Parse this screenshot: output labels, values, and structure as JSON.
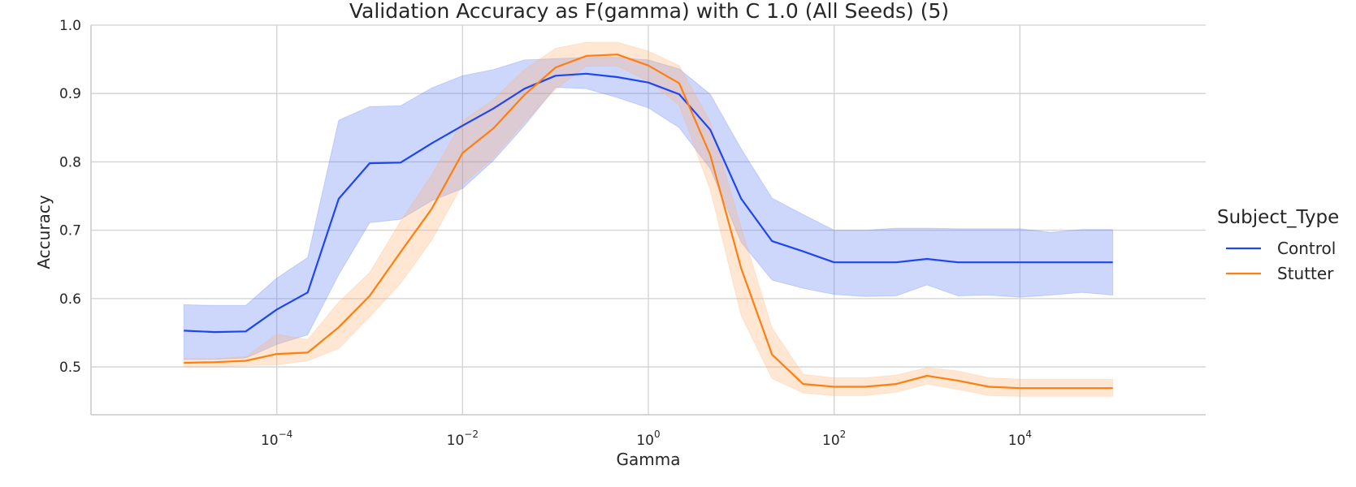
{
  "chart_data": {
    "type": "line",
    "title": "Validation Accuracy as F(gamma) with C 1.0 (All Seeds) (5)",
    "xlabel": "Gamma",
    "ylabel": "Accuracy",
    "x_scale": "log",
    "xlim": [
      1e-06,
      1000000.0
    ],
    "ylim": [
      0.43,
      1.0
    ],
    "grid": true,
    "x_ticks": [
      0.0001,
      0.01,
      1,
      100,
      10000
    ],
    "x_tick_labels": [
      {
        "base": "10",
        "exp": "−4"
      },
      {
        "base": "10",
        "exp": "−2"
      },
      {
        "base": "10",
        "exp": "0"
      },
      {
        "base": "10",
        "exp": "2"
      },
      {
        "base": "10",
        "exp": "4"
      }
    ],
    "y_ticks": [
      0.5,
      0.6,
      0.7,
      0.8,
      0.9,
      1.0
    ],
    "y_tick_labels": [
      "0.5",
      "0.6",
      "0.7",
      "0.8",
      "0.9",
      "1.0"
    ],
    "legend": {
      "title": "Subject_Type",
      "placement": "right",
      "entries": [
        "Control",
        "Stutter"
      ]
    },
    "x": [
      1e-05,
      2.15e-05,
      4.64e-05,
      0.0001,
      0.000215,
      0.000464,
      0.001,
      0.00215,
      0.00464,
      0.01,
      0.0215,
      0.0464,
      0.1,
      0.215,
      0.464,
      1.0,
      2.15,
      4.64,
      10.0,
      21.5,
      46.4,
      100.0,
      215.0,
      464.0,
      1000.0,
      2150.0,
      4640.0,
      10000.0,
      21500.0,
      46400.0,
      100000.0
    ],
    "series": [
      {
        "name": "Control",
        "color": "#1f45f0",
        "band_color": "#5b7cf5",
        "values": [
          0.553,
          0.551,
          0.552,
          0.584,
          0.609,
          0.746,
          0.798,
          0.799,
          0.827,
          0.853,
          0.878,
          0.907,
          0.926,
          0.929,
          0.924,
          0.916,
          0.899,
          0.847,
          0.746,
          0.684,
          0.669,
          0.653,
          0.653,
          0.653,
          0.658,
          0.653,
          0.653,
          0.653,
          0.653,
          0.653,
          0.653
        ],
        "lower": [
          0.511,
          0.511,
          0.513,
          0.533,
          0.547,
          0.635,
          0.711,
          0.716,
          0.743,
          0.761,
          0.802,
          0.853,
          0.909,
          0.907,
          0.894,
          0.879,
          0.85,
          0.79,
          0.682,
          0.627,
          0.615,
          0.606,
          0.603,
          0.604,
          0.62,
          0.604,
          0.605,
          0.602,
          0.605,
          0.609,
          0.605
        ],
        "upper": [
          0.591,
          0.59,
          0.59,
          0.63,
          0.66,
          0.861,
          0.881,
          0.882,
          0.908,
          0.926,
          0.935,
          0.949,
          0.951,
          0.953,
          0.953,
          0.949,
          0.936,
          0.899,
          0.819,
          0.747,
          0.723,
          0.7,
          0.7,
          0.703,
          0.703,
          0.702,
          0.702,
          0.702,
          0.697,
          0.701,
          0.701
        ]
      },
      {
        "name": "Stutter",
        "color": "#ff7f0e",
        "band_color": "#ffb070",
        "values": [
          0.506,
          0.507,
          0.509,
          0.519,
          0.521,
          0.558,
          0.604,
          0.668,
          0.731,
          0.813,
          0.849,
          0.898,
          0.938,
          0.955,
          0.957,
          0.941,
          0.915,
          0.81,
          0.644,
          0.518,
          0.475,
          0.471,
          0.471,
          0.475,
          0.487,
          0.48,
          0.471,
          0.469,
          0.469,
          0.469,
          0.469
        ],
        "lower": [
          0.5,
          0.5,
          0.502,
          0.503,
          0.509,
          0.527,
          0.573,
          0.622,
          0.685,
          0.767,
          0.806,
          0.858,
          0.906,
          0.94,
          0.94,
          0.918,
          0.883,
          0.759,
          0.575,
          0.483,
          0.462,
          0.458,
          0.458,
          0.463,
          0.475,
          0.467,
          0.458,
          0.457,
          0.457,
          0.457,
          0.457
        ],
        "upper": [
          0.512,
          0.512,
          0.515,
          0.548,
          0.54,
          0.595,
          0.638,
          0.713,
          0.781,
          0.86,
          0.891,
          0.935,
          0.966,
          0.975,
          0.975,
          0.962,
          0.941,
          0.859,
          0.704,
          0.557,
          0.489,
          0.484,
          0.484,
          0.488,
          0.499,
          0.494,
          0.484,
          0.482,
          0.482,
          0.482,
          0.482
        ]
      }
    ]
  }
}
